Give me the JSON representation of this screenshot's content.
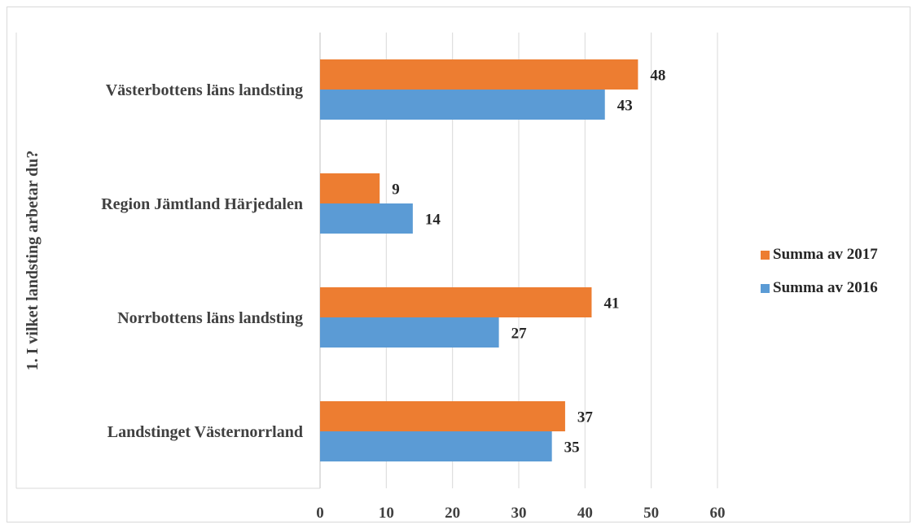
{
  "chart_data": {
    "type": "bar",
    "orientation": "horizontal",
    "ylabel": "1. I vilket landsting arbetar du?",
    "xlabel": "",
    "categories": [
      "Västerbottens läns landsting",
      "Region Jämtland Härjedalen",
      "Norrbottens läns landsting",
      "Landstinget Västernorrland"
    ],
    "series": [
      {
        "name": "Summa av 2017",
        "color": "#ED7D31",
        "values": [
          48,
          9,
          41,
          37
        ]
      },
      {
        "name": "Summa av 2016",
        "color": "#5B9BD5",
        "values": [
          43,
          14,
          27,
          35
        ]
      }
    ],
    "xlim": [
      0,
      60
    ],
    "xticks": [
      "0",
      "10",
      "20",
      "30",
      "40",
      "50",
      "60"
    ],
    "grid": true,
    "legend_position": "right"
  }
}
